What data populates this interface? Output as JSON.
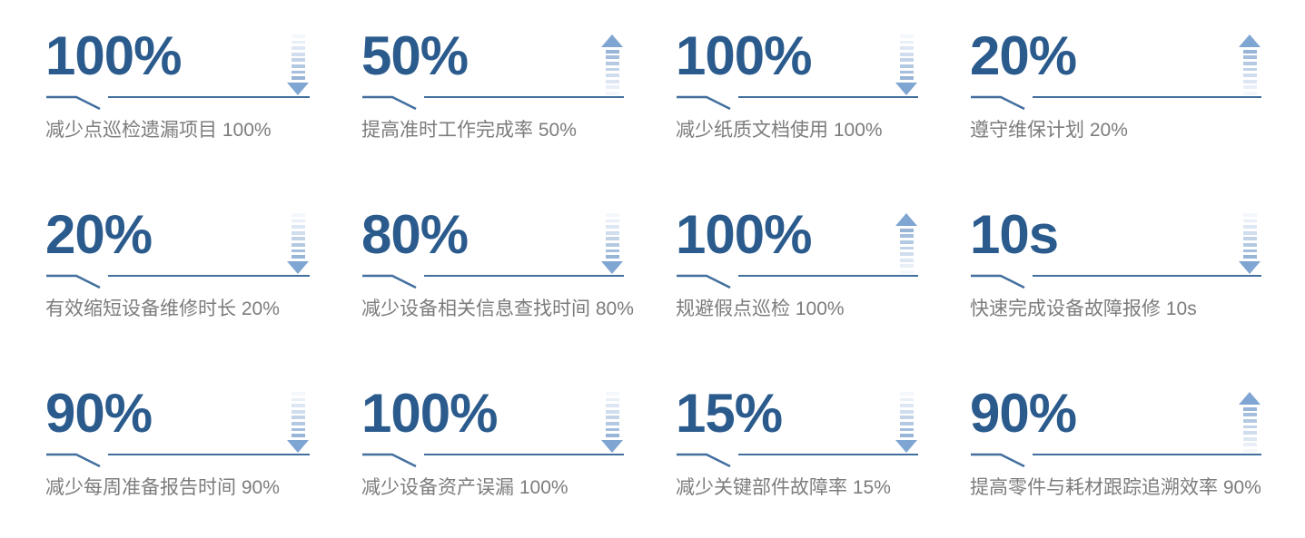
{
  "colors": {
    "value_blue": "#2b5b8d",
    "line_blue": "#426f9e",
    "desc_gray": "#7c7c7c",
    "arrow_triangle": "#7fa5d2",
    "arrow_bar_colors": [
      "#f4f7fb",
      "#e9eff7",
      "#dde7f3",
      "#cfddee",
      "#c2d3e8",
      "#b3c9e2",
      "#a5bedd",
      "#98b4d7"
    ],
    "background": "#ffffff"
  },
  "cards": [
    {
      "value": "100%",
      "direction": "down",
      "label": "减少点巡检遗漏项目 100%"
    },
    {
      "value": "50%",
      "direction": "up",
      "label": "提高准时工作完成率 50%"
    },
    {
      "value": "100%",
      "direction": "down",
      "label": "减少纸质文档使用 100%"
    },
    {
      "value": "20%",
      "direction": "up",
      "label": "遵守维保计划 20%"
    },
    {
      "value": "20%",
      "direction": "down",
      "label": "有效缩短设备维修时长 20%"
    },
    {
      "value": "80%",
      "direction": "down",
      "label": "减少设备相关信息查找时间 80%"
    },
    {
      "value": "100%",
      "direction": "up",
      "label": "规避假点巡检 100%"
    },
    {
      "value": "10s",
      "direction": "down",
      "label": "快速完成设备故障报修 10s"
    },
    {
      "value": "90%",
      "direction": "down",
      "label": "减少每周准备报告时间 90%"
    },
    {
      "value": "100%",
      "direction": "down",
      "label": "减少设备资产误漏 100%"
    },
    {
      "value": "15%",
      "direction": "down",
      "label": "减少关键部件故障率 15%"
    },
    {
      "value": "90%",
      "direction": "up",
      "label": "提高零件与耗材跟踪追溯效率 90%"
    }
  ]
}
